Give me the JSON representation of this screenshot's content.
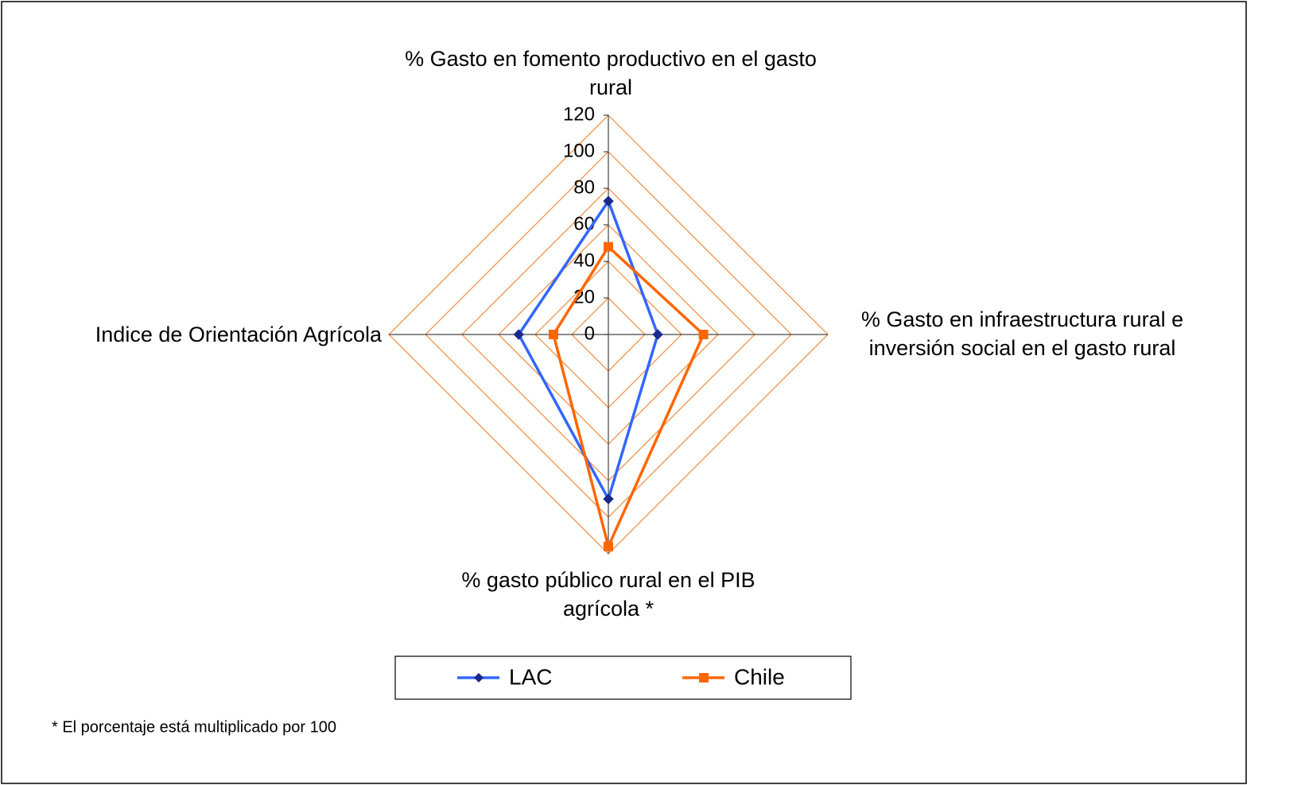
{
  "chart_data": {
    "type": "radar",
    "categories": [
      "% Gasto en fomento productivo en el gasto rural",
      "% Gasto en infraestructura rural e inversión social en el gasto rural",
      "% gasto público rural en el PIB agrícola *",
      "Indice de Orientación Agrícola"
    ],
    "series": [
      {
        "name": "LAC",
        "color": "#3366ff",
        "values": [
          73,
          27,
          90,
          49
        ]
      },
      {
        "name": "Chile",
        "color": "#ff6600",
        "values": [
          48,
          52,
          116,
          30
        ]
      }
    ],
    "ylim": [
      0,
      120
    ],
    "yticks": [
      0,
      20,
      40,
      60,
      80,
      100,
      120
    ],
    "grid": true,
    "footnote": "* El porcentaje está multiplicado por 100"
  }
}
